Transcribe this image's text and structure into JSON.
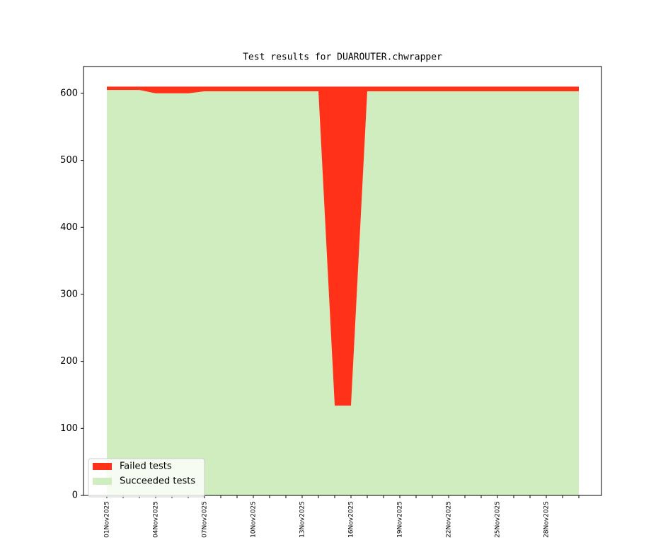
{
  "chart_data": {
    "type": "area",
    "stacked": true,
    "title": "Test results for DUAROUTER.chwrapper",
    "categories": [
      "01Nov2025",
      null,
      null,
      "04Nov2025",
      null,
      null,
      "07Nov2025",
      null,
      null,
      "10Nov2025",
      null,
      null,
      "13Nov2025",
      null,
      null,
      "16Nov2025",
      null,
      null,
      "19Nov2025",
      null,
      null,
      "22Nov2025",
      null,
      null,
      "25Nov2025",
      null,
      null,
      "28Nov2025",
      null,
      null
    ],
    "series": [
      {
        "name": "Failed tests",
        "color": "#ff3219",
        "values": [
          5,
          5,
          5,
          10,
          10,
          10,
          7,
          7,
          7,
          7,
          7,
          7,
          7,
          7,
          476,
          476,
          7,
          7,
          7,
          7,
          7,
          7,
          7,
          7,
          7,
          7,
          7,
          7,
          7,
          7
        ]
      },
      {
        "name": "Succeeded tests",
        "color": "#cfedbf",
        "values": [
          605,
          605,
          605,
          600,
          600,
          600,
          603,
          603,
          603,
          603,
          603,
          603,
          603,
          603,
          134,
          134,
          603,
          603,
          603,
          603,
          603,
          603,
          603,
          603,
          603,
          603,
          603,
          603,
          603,
          603
        ]
      }
    ],
    "ylim": [
      0,
      640
    ],
    "yticks": [
      0,
      100,
      200,
      300,
      400,
      500,
      600
    ],
    "legend": "lower left",
    "grid": false
  }
}
